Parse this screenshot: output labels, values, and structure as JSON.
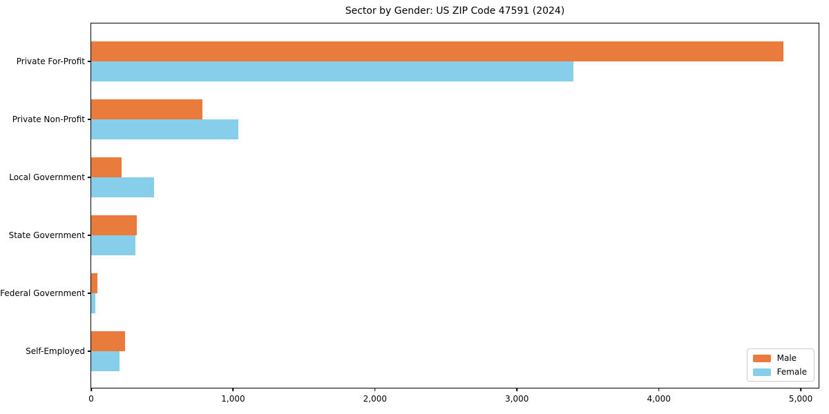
{
  "chart_data": {
    "type": "bar",
    "orientation": "horizontal",
    "title": "Sector by Gender: US ZIP Code 47591 (2024)",
    "categories": [
      "Private For-Profit",
      "Private Non-Profit",
      "Local Government",
      "State Government",
      "Federal Government",
      "Self-Employed"
    ],
    "series": [
      {
        "name": "Male",
        "color": "#E97B3C",
        "values": [
          4880,
          785,
          215,
          320,
          45,
          240
        ]
      },
      {
        "name": "Female",
        "color": "#87CEEB",
        "values": [
          3400,
          1035,
          445,
          310,
          30,
          200
        ]
      }
    ],
    "xlabel": "",
    "ylabel": "",
    "xlim": [
      0,
      5126
    ],
    "x_ticks": [
      0,
      1000,
      2000,
      3000,
      4000,
      5000
    ],
    "x_tick_labels": [
      "0",
      "1,000",
      "2,000",
      "3,000",
      "4,000",
      "5,000"
    ],
    "grid": false,
    "legend": {
      "position": "lower right",
      "entries": [
        "Male",
        "Female"
      ]
    },
    "colors": {
      "male": "#E97B3C",
      "female": "#87CEEB",
      "spine": "#000000",
      "background": "#ffffff"
    }
  }
}
